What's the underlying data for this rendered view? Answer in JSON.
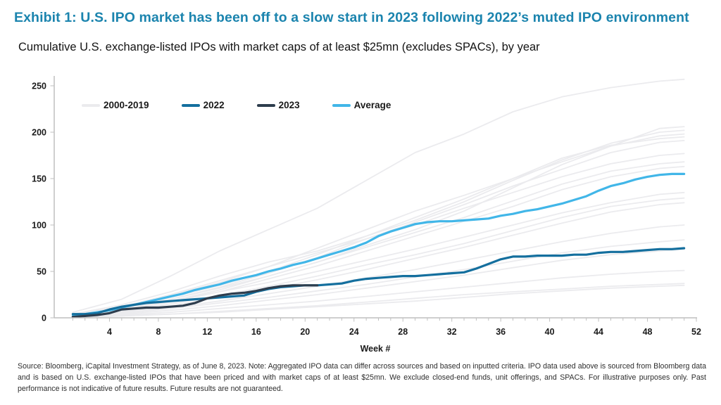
{
  "header": {
    "title": "Exhibit 1: U.S. IPO market has been off to a slow start in 2023 following 2022’s muted IPO environment",
    "subtitle": "Cumulative U.S. exchange-listed IPOs with market caps of at least $25mn (excludes SPACs), by year"
  },
  "footer": {
    "text": "Source: Bloomberg, iCapital Investment Strategy, as of June 8, 2023. Note: Aggregated IPO data can differ across sources and based on inputted criteria. IPO data used above is sourced from Bloomberg data and is based on U.S. exchange-listed IPOs that have been priced and with market caps of at least $25mn. We exclude closed-end funds, unit offerings, and SPACs. For illustrative purposes only. Past performance is not indicative of future results. Future results are not guaranteed."
  },
  "colors": {
    "title_blue": "#1b84ae",
    "axis_line": "#bfbfbf",
    "tick_text": "#1a1a1a",
    "background_gray": "#ebebee",
    "series_2022": "#146f9e",
    "series_2023": "#2e3d4d",
    "series_average": "#41b6e8"
  },
  "chart_data": {
    "type": "line",
    "title": "Cumulative U.S. exchange-listed IPOs with market caps of at least $25mn (excludes SPACs), by year",
    "xlabel": "Week #",
    "ylabel": "",
    "x_axis": {
      "range": [
        0,
        53
      ],
      "tick_labels": [
        4,
        8,
        12,
        16,
        20,
        24,
        28,
        32,
        36,
        40,
        44,
        48,
        52
      ],
      "minor_tick_every_weeks": 1
    },
    "y_axis": {
      "range": [
        0,
        263
      ],
      "tick_labels": [
        0,
        50,
        100,
        150,
        200,
        250
      ],
      "grid": false
    },
    "legend": [
      {
        "label": "2000-2019",
        "color": "#ebebee"
      },
      {
        "label": "2022",
        "color": "#146f9e"
      },
      {
        "label": "2023",
        "color": "#2e3d4d"
      },
      {
        "label": "Average",
        "color": "#41b6e8"
      }
    ],
    "legend_position": "top-left-inside",
    "series": [
      {
        "name": "2022",
        "color": "#146f9e",
        "start_week": 1,
        "line_width": 3.2,
        "values": [
          4,
          4,
          5,
          9,
          12,
          14,
          16,
          17,
          18,
          19,
          20,
          21,
          22,
          23,
          24,
          28,
          31,
          33,
          34,
          35,
          35,
          36,
          37,
          40,
          42,
          43,
          44,
          45,
          45,
          46,
          47,
          48,
          49,
          53,
          58,
          63,
          66,
          66,
          67,
          67,
          67,
          68,
          68,
          70,
          71,
          71,
          72,
          73,
          74,
          74,
          75
        ]
      },
      {
        "name": "2023",
        "color": "#2e3d4d",
        "start_week": 1,
        "line_width": 3.2,
        "values": [
          1,
          2,
          3,
          5,
          9,
          10,
          11,
          11,
          12,
          13,
          16,
          21,
          24,
          26,
          27,
          29,
          32,
          34,
          35,
          35,
          35
        ]
      },
      {
        "name": "Average",
        "color": "#41b6e8",
        "start_week": 1,
        "line_width": 3.2,
        "values": [
          2,
          4,
          6,
          8,
          11,
          14,
          17,
          20,
          23,
          26,
          30,
          33,
          36,
          40,
          43,
          46,
          50,
          53,
          57,
          60,
          64,
          68,
          72,
          76,
          81,
          88,
          93,
          97,
          101,
          103,
          104,
          104,
          105,
          106,
          107,
          110,
          112,
          115,
          117,
          120,
          123,
          127,
          131,
          137,
          142,
          145,
          149,
          152,
          154,
          155,
          155
        ]
      }
    ],
    "background_series": {
      "name": "2000-2019",
      "color": "#ebebee",
      "line_width": 1.8,
      "sample_weeks": [
        1,
        5,
        9,
        13,
        17,
        21,
        25,
        29,
        33,
        37,
        41,
        45,
        49,
        51
      ],
      "lines": [
        [
          6,
          20,
          45,
          72,
          95,
          118,
          148,
          178,
          198,
          222,
          238,
          248,
          255,
          257
        ],
        [
          2,
          8,
          18,
          30,
          45,
          60,
          78,
          95,
          115,
          140,
          165,
          185,
          204,
          206
        ],
        [
          4,
          14,
          28,
          45,
          60,
          72,
          88,
          105,
          125,
          148,
          170,
          188,
          200,
          202
        ],
        [
          3,
          11,
          24,
          38,
          55,
          75,
          95,
          115,
          132,
          150,
          168,
          185,
          196,
          198
        ],
        [
          3,
          10,
          22,
          35,
          50,
          68,
          88,
          108,
          128,
          150,
          172,
          186,
          193,
          195
        ],
        [
          2,
          9,
          20,
          33,
          48,
          65,
          85,
          103,
          122,
          142,
          160,
          178,
          189,
          191
        ],
        [
          4,
          12,
          25,
          40,
          55,
          70,
          85,
          100,
          118,
          135,
          152,
          166,
          175,
          177
        ],
        [
          3,
          10,
          20,
          32,
          45,
          60,
          76,
          92,
          108,
          126,
          144,
          158,
          166,
          168
        ],
        [
          2,
          8,
          17,
          28,
          42,
          56,
          72,
          88,
          104,
          120,
          138,
          152,
          161,
          163
        ],
        [
          3,
          9,
          18,
          28,
          38,
          50,
          62,
          74,
          87,
          100,
          113,
          124,
          133,
          135
        ],
        [
          2,
          7,
          15,
          24,
          34,
          45,
          57,
          68,
          80,
          94,
          108,
          120,
          127,
          129
        ],
        [
          2,
          6,
          13,
          22,
          31,
          41,
          52,
          64,
          76,
          89,
          102,
          114,
          122,
          124
        ],
        [
          1,
          5,
          11,
          18,
          26,
          34,
          43,
          52,
          62,
          72,
          82,
          91,
          98,
          100
        ],
        [
          2,
          5,
          10,
          16,
          22,
          29,
          36,
          44,
          52,
          61,
          70,
          77,
          82,
          84
        ],
        [
          1,
          4,
          8,
          13,
          19,
          25,
          32,
          39,
          46,
          54,
          62,
          68,
          72,
          74
        ],
        [
          1,
          3,
          6,
          10,
          14,
          18,
          23,
          28,
          33,
          38,
          43,
          47,
          50,
          51
        ],
        [
          1,
          2,
          4,
          7,
          10,
          13,
          17,
          21,
          25,
          28,
          31,
          34,
          36,
          37
        ],
        [
          0,
          2,
          4,
          6,
          9,
          12,
          15,
          18,
          22,
          26,
          29,
          32,
          34,
          35
        ]
      ]
    }
  }
}
